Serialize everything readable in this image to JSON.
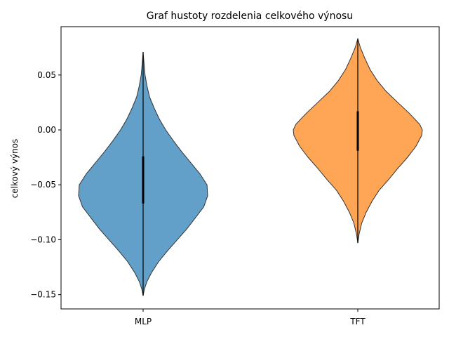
{
  "chart_data": {
    "type": "violin",
    "title": "Graf hustoty rozdelenia celkového výnosu",
    "xlabel": "",
    "ylabel": "celkový výnos",
    "categories": [
      "MLP",
      "TFT"
    ],
    "ylim": [
      -0.163,
      0.094
    ],
    "yticks": [
      0.05,
      0.0,
      -0.05,
      -0.1,
      -0.15
    ],
    "ytick_labels": [
      "0.05",
      "0.00",
      "−0.05",
      "−0.10",
      "−0.15"
    ],
    "grid": false,
    "series": [
      {
        "name": "MLP",
        "color": "#1f77b4",
        "min": -0.151,
        "max": 0.071,
        "iqr": [
          -0.067,
          -0.024
        ],
        "density": [
          [
            -0.151,
            0.0
          ],
          [
            -0.145,
            0.02
          ],
          [
            -0.138,
            0.06
          ],
          [
            -0.13,
            0.13
          ],
          [
            -0.12,
            0.24
          ],
          [
            -0.11,
            0.38
          ],
          [
            -0.1,
            0.53
          ],
          [
            -0.09,
            0.68
          ],
          [
            -0.08,
            0.81
          ],
          [
            -0.07,
            0.94
          ],
          [
            -0.06,
            1.0
          ],
          [
            -0.05,
            0.99
          ],
          [
            -0.04,
            0.88
          ],
          [
            -0.03,
            0.74
          ],
          [
            -0.02,
            0.6
          ],
          [
            -0.01,
            0.47
          ],
          [
            0.0,
            0.35
          ],
          [
            0.01,
            0.25
          ],
          [
            0.02,
            0.17
          ],
          [
            0.03,
            0.1
          ],
          [
            0.04,
            0.06
          ],
          [
            0.05,
            0.03
          ],
          [
            0.06,
            0.015
          ],
          [
            0.071,
            0.0
          ]
        ]
      },
      {
        "name": "TFT",
        "color": "#ff7f0e",
        "min": -0.103,
        "max": 0.083,
        "iqr": [
          -0.019,
          0.017
        ],
        "density": [
          [
            -0.103,
            0.0
          ],
          [
            -0.095,
            0.02
          ],
          [
            -0.085,
            0.06
          ],
          [
            -0.075,
            0.13
          ],
          [
            -0.065,
            0.22
          ],
          [
            -0.055,
            0.33
          ],
          [
            -0.045,
            0.48
          ],
          [
            -0.035,
            0.62
          ],
          [
            -0.025,
            0.77
          ],
          [
            -0.015,
            0.9
          ],
          [
            -0.005,
            0.99
          ],
          [
            0.0,
            1.0
          ],
          [
            0.005,
            0.96
          ],
          [
            0.015,
            0.8
          ],
          [
            0.025,
            0.62
          ],
          [
            0.035,
            0.44
          ],
          [
            0.045,
            0.3
          ],
          [
            0.055,
            0.19
          ],
          [
            0.065,
            0.11
          ],
          [
            0.075,
            0.04
          ],
          [
            0.083,
            0.0
          ]
        ]
      }
    ]
  }
}
